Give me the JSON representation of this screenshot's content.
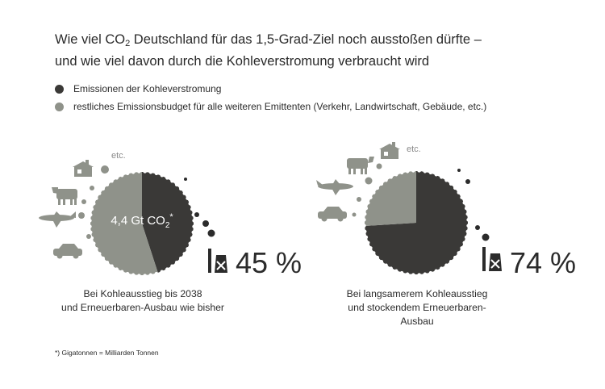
{
  "title_line1_pre": "Wie viel CO",
  "title_line1_sub": "2",
  "title_line1_post": " Deutschland für das 1,5-Grad-Ziel noch ausstoßen dürfte –",
  "title_line2": "und wie viel davon durch die Kohleverstromung verbraucht wird",
  "colors": {
    "coal": "#3a3937",
    "rest": "#8f928a"
  },
  "legend": [
    {
      "label": "Emissionen der Kohleverstromung",
      "color": "#3a3937"
    },
    {
      "label": "restliches Emissionsbudget für alle weiteren Emittenten (Verkehr, Landwirtschaft, Gebäude, etc.)",
      "color": "#8f928a"
    }
  ],
  "icon_etc": "etc.",
  "budget_label_pre": "4,4 Gt CO",
  "budget_label_sub": "2",
  "budget_label_post": "*",
  "footnote": "*) Gigatonnen = Milliarden Tonnen",
  "chart_data": [
    {
      "type": "pie",
      "slices": [
        {
          "name": "Emissionen der Kohleverstromung",
          "value": 45
        },
        {
          "name": "restliches Emissionsbudget für alle weiteren Emittenten",
          "value": 55
        }
      ],
      "total_label": "4,4 Gt CO2*",
      "percent_label": "45 %",
      "caption": [
        "Bei Kohleausstieg bis 2038",
        "und Erneuerbaren-Ausbau wie bisher"
      ]
    },
    {
      "type": "pie",
      "slices": [
        {
          "name": "Emissionen der Kohleverstromung",
          "value": 74
        },
        {
          "name": "restliches Emissionsbudget für alle weiteren Emittenten",
          "value": 26
        }
      ],
      "percent_label": "74 %",
      "caption": [
        "Bei langsamerem Kohleausstieg",
        "und stockendem Erneuerbaren-Ausbau"
      ]
    }
  ]
}
